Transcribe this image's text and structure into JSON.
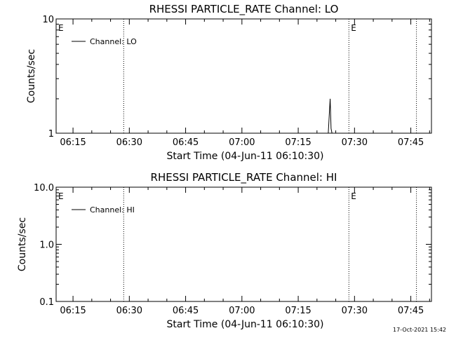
{
  "chart_data": [
    {
      "type": "line",
      "title": "RHESSI PARTICLE_RATE Channel: LO",
      "xlabel": "Start Time (04-Jun-11 06:10:30)",
      "ylabel": "Counts/sec",
      "yscale": "log",
      "ylim": [
        1,
        10
      ],
      "ytick_labels": [
        "1",
        "10"
      ],
      "xlim": [
        "06:10:30",
        "07:50:30"
      ],
      "xtick_labels": [
        "06:15",
        "06:30",
        "06:45",
        "07:00",
        "07:15",
        "07:30",
        "07:45"
      ],
      "grid": false,
      "legend_position": "top-left",
      "series": [
        {
          "name": "Channel: LO",
          "x": [
            "07:23:00",
            "07:23:15",
            "07:23:30",
            "07:23:45",
            "07:24:00"
          ],
          "y": [
            1,
            1.4,
            2.0,
            1.1,
            1
          ]
        }
      ],
      "event_markers": [
        {
          "time": "06:10:30",
          "label": "E"
        },
        {
          "time": "06:28:30",
          "label": ""
        },
        {
          "time": "07:28:30",
          "label": "E"
        },
        {
          "time": "07:46:30",
          "label": ""
        }
      ]
    },
    {
      "type": "line",
      "title": "RHESSI PARTICLE_RATE Channel: HI",
      "xlabel": "Start Time (04-Jun-11 06:10:30)",
      "ylabel": "Counts/sec",
      "yscale": "log",
      "ylim": [
        0.1,
        10
      ],
      "ytick_labels": [
        "0.1",
        "1.0",
        "10.0"
      ],
      "xlim": [
        "06:10:30",
        "07:50:30"
      ],
      "xtick_labels": [
        "06:15",
        "06:30",
        "06:45",
        "07:00",
        "07:15",
        "07:30",
        "07:45"
      ],
      "grid": false,
      "legend_position": "top-left",
      "series": [
        {
          "name": "Channel: HI",
          "x": [],
          "y": []
        }
      ],
      "event_markers": [
        {
          "time": "06:10:30",
          "label": "E"
        },
        {
          "time": "06:28:30",
          "label": ""
        },
        {
          "time": "07:28:30",
          "label": "E"
        },
        {
          "time": "07:46:30",
          "label": ""
        }
      ]
    }
  ],
  "timestamp": "17-Oct-2021 15:42",
  "colors": {
    "foreground": "#000000",
    "background": "#ffffff"
  }
}
